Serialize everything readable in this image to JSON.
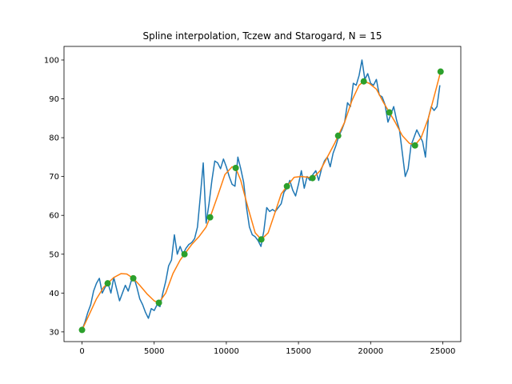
{
  "chart_data": {
    "type": "line",
    "title": "Spline interpolation, Tczew and Starogard, N = 15",
    "xlabel": "",
    "ylabel": "",
    "xlim": [
      -1250,
      26250
    ],
    "ylim": [
      27.5,
      103.5
    ],
    "xticks": [
      0,
      5000,
      10000,
      15000,
      20000,
      25000
    ],
    "yticks": [
      30,
      40,
      50,
      60,
      70,
      80,
      90,
      100
    ],
    "grid": false,
    "colors": {
      "elevation": "#1f77b4",
      "spline": "#ff7f0e",
      "nodes": "#2ca02c"
    },
    "series": [
      {
        "kind": "line",
        "color": "#1f77b4",
        "x": [
          0,
          200,
          400,
          600,
          800,
          1000,
          1200,
          1400,
          1600,
          1800,
          2000,
          2200,
          2400,
          2600,
          2800,
          3000,
          3200,
          3400,
          3600,
          3800,
          4000,
          4200,
          4400,
          4600,
          4800,
          5000,
          5200,
          5400,
          5600,
          5800,
          6000,
          6200,
          6400,
          6600,
          6800,
          7000,
          7200,
          7400,
          7600,
          7800,
          8000,
          8200,
          8400,
          8600,
          8800,
          9000,
          9200,
          9400,
          9600,
          9800,
          10000,
          10200,
          10400,
          10600,
          10800,
          11000,
          11200,
          11400,
          11600,
          11800,
          12000,
          12200,
          12400,
          12600,
          12800,
          13000,
          13200,
          13400,
          13600,
          13800,
          14000,
          14200,
          14400,
          14600,
          14800,
          15000,
          15200,
          15400,
          15600,
          15800,
          16000,
          16200,
          16400,
          16600,
          16800,
          17000,
          17200,
          17400,
          17600,
          17800,
          18000,
          18200,
          18400,
          18600,
          18800,
          19000,
          19200,
          19400,
          19600,
          19800,
          20000,
          20200,
          20400,
          20600,
          20800,
          21000,
          21200,
          21400,
          21600,
          21800,
          22000,
          22200,
          22400,
          22600,
          22800,
          23000,
          23200,
          23400,
          23600,
          23800,
          24000,
          24200,
          24400,
          24600,
          24800
        ],
        "y": [
          30.5,
          32.5,
          35.0,
          37.0,
          40.5,
          42.5,
          43.8,
          40.0,
          41.5,
          42.5,
          40.0,
          44.0,
          41.0,
          38.0,
          40.0,
          42.0,
          40.5,
          43.0,
          44.0,
          41.5,
          38.5,
          37.0,
          35.0,
          33.5,
          36.0,
          35.5,
          37.0,
          36.5,
          40.0,
          43.0,
          47.0,
          48.5,
          55.0,
          50.0,
          52.0,
          50.0,
          51.5,
          52.5,
          53.0,
          54.0,
          57.0,
          65.0,
          73.5,
          58.0,
          63.0,
          69.0,
          74.0,
          73.5,
          72.0,
          74.5,
          72.5,
          70.0,
          68.0,
          67.5,
          75.0,
          72.0,
          68.5,
          62.0,
          57.0,
          55.0,
          54.5,
          53.5,
          52.0,
          56.0,
          62.0,
          61.0,
          61.5,
          61.0,
          62.0,
          63.0,
          66.0,
          67.0,
          69.0,
          66.5,
          65.0,
          68.0,
          71.5,
          67.0,
          70.0,
          69.0,
          70.5,
          71.5,
          69.0,
          72.0,
          74.0,
          75.0,
          72.5,
          76.0,
          78.0,
          80.5,
          82.0,
          84.0,
          89.0,
          88.0,
          94.0,
          93.5,
          96.0,
          100.0,
          95.0,
          96.5,
          94.0,
          93.5,
          95.0,
          91.0,
          90.5,
          88.5,
          84.0,
          86.0,
          88.0,
          84.5,
          82.0,
          76.0,
          70.0,
          72.0,
          78.0,
          80.0,
          82.0,
          80.5,
          79.0,
          75.0,
          85.0,
          88.0,
          87.0,
          88.0,
          93.5
        ]
      },
      {
        "kind": "line",
        "color": "#ff7f0e",
        "x": [
          0,
          500,
          1000,
          1500,
          1775,
          2200,
          2700,
          3100,
          3550,
          4000,
          4500,
          5000,
          5325,
          5800,
          6300,
          6800,
          7100,
          7600,
          8100,
          8600,
          8875,
          9400,
          9900,
          10400,
          10650,
          11000,
          11500,
          12000,
          12425,
          12900,
          13400,
          13800,
          14200,
          14700,
          15200,
          15700,
          16000,
          16500,
          17000,
          17500,
          17750,
          18200,
          18700,
          19200,
          19525,
          19900,
          20400,
          20900,
          21300,
          21700,
          22200,
          22700,
          23100,
          23500,
          24000,
          24500,
          24850
        ],
        "y": [
          30.5,
          34.5,
          38.5,
          41.5,
          42.5,
          44.0,
          45.0,
          44.9,
          43.8,
          42.0,
          39.8,
          38.0,
          37.5,
          40.0,
          45.0,
          48.5,
          50.0,
          52.5,
          54.5,
          57.0,
          59.5,
          65.0,
          70.5,
          72.5,
          72.2,
          69.0,
          62.0,
          55.5,
          53.8,
          55.5,
          61.0,
          65.5,
          67.5,
          69.8,
          70.0,
          69.8,
          69.6,
          71.5,
          75.0,
          78.5,
          80.5,
          84.0,
          89.5,
          93.5,
          94.5,
          94.0,
          92.5,
          89.0,
          86.5,
          84.0,
          80.5,
          78.5,
          78.2,
          80.0,
          85.0,
          92.0,
          97.0
        ]
      },
      {
        "kind": "scatter",
        "color": "#2ca02c",
        "x": [
          0,
          1775,
          3550,
          5325,
          7100,
          8875,
          10650,
          12425,
          14200,
          15975,
          17750,
          19525,
          21300,
          23075,
          24850
        ],
        "y": [
          30.5,
          42.5,
          43.8,
          37.5,
          50.0,
          59.5,
          72.2,
          53.8,
          67.5,
          69.6,
          80.5,
          94.5,
          86.5,
          78.0,
          97.0
        ]
      }
    ]
  }
}
